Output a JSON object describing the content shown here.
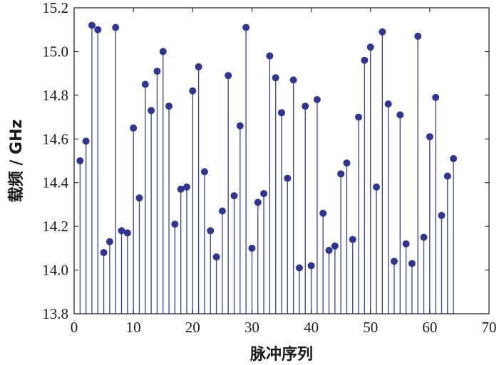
{
  "chart_data": {
    "type": "stem",
    "title": "",
    "xlabel": "脉冲序列",
    "ylabel": "载频 / GHz",
    "xlim": [
      0,
      70
    ],
    "ylim": [
      13.8,
      15.2
    ],
    "xticks": [
      "0",
      "10",
      "20",
      "30",
      "40",
      "50",
      "60",
      "70"
    ],
    "yticks": [
      "13.8",
      "14.0",
      "14.2",
      "14.4",
      "14.6",
      "14.8",
      "15.0",
      "15.2"
    ],
    "grid": false,
    "stem_color": "#3b3f9a",
    "marker_color": "#2f3590",
    "x": [
      1,
      2,
      3,
      4,
      5,
      6,
      7,
      8,
      9,
      10,
      11,
      12,
      13,
      14,
      15,
      16,
      17,
      18,
      19,
      20,
      21,
      22,
      23,
      24,
      25,
      26,
      27,
      28,
      29,
      30,
      31,
      32,
      33,
      34,
      35,
      36,
      37,
      38,
      39,
      40,
      41,
      42,
      43,
      44,
      45,
      46,
      47,
      48,
      49,
      50,
      51,
      52,
      53,
      54,
      55,
      56,
      57,
      58,
      59,
      60,
      61,
      62,
      63,
      64
    ],
    "values": [
      14.5,
      14.59,
      15.12,
      15.1,
      14.08,
      14.13,
      15.11,
      14.18,
      14.17,
      14.65,
      14.33,
      14.85,
      14.73,
      14.91,
      15.0,
      14.75,
      14.21,
      14.37,
      14.38,
      14.82,
      14.93,
      14.45,
      14.18,
      14.06,
      14.27,
      14.89,
      14.34,
      14.66,
      15.11,
      14.1,
      14.31,
      14.35,
      14.98,
      14.88,
      14.72,
      14.42,
      14.87,
      14.01,
      14.75,
      14.02,
      14.78,
      14.26,
      14.09,
      14.11,
      14.44,
      14.49,
      14.14,
      14.7,
      14.96,
      15.02,
      14.38,
      15.09,
      14.76,
      14.04,
      14.71,
      14.12,
      14.03,
      15.07,
      14.15,
      14.61,
      14.79,
      14.25,
      14.43,
      14.51
    ]
  }
}
